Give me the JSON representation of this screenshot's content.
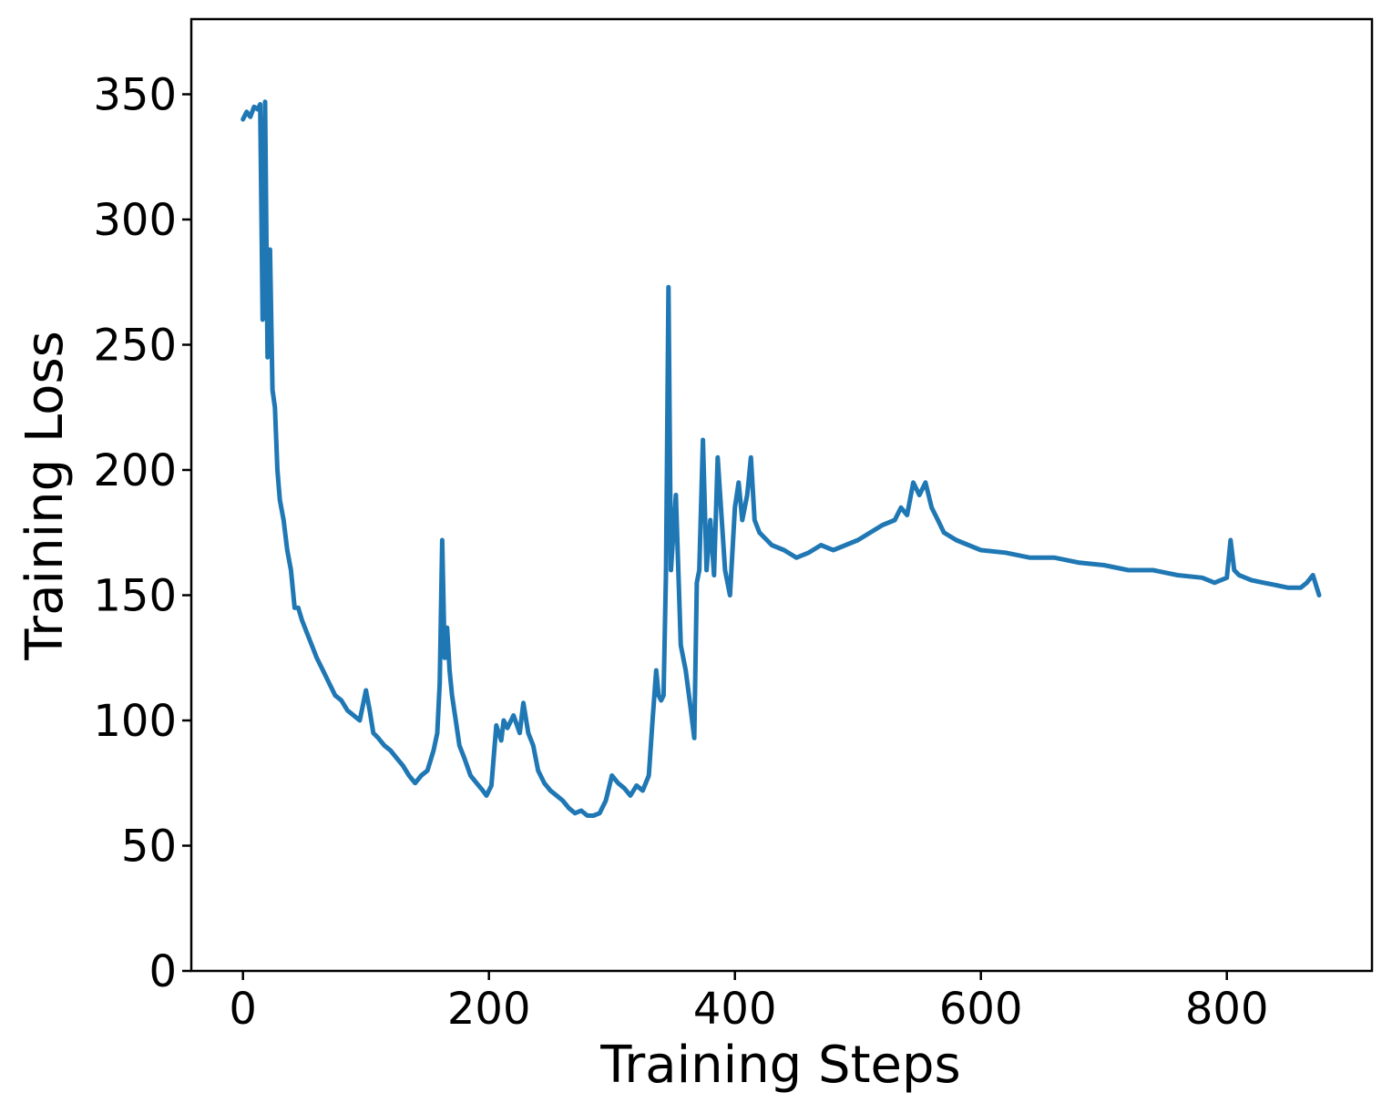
{
  "chart_data": {
    "type": "line",
    "title": "",
    "xlabel": "Training Steps",
    "ylabel": "Training Loss",
    "xlim": [
      -42,
      918
    ],
    "ylim": [
      0,
      380
    ],
    "xticks": [
      0,
      200,
      400,
      600,
      800
    ],
    "xtick_labels": [
      "0",
      "200",
      "400",
      "600",
      "800"
    ],
    "yticks": [
      0,
      50,
      100,
      150,
      200,
      250,
      300,
      350
    ],
    "ytick_labels": [
      "0",
      "50",
      "100",
      "150",
      "200",
      "250",
      "300",
      "350"
    ],
    "grid": false,
    "legend": "none",
    "series": [
      {
        "color": "#1f77b4",
        "x": [
          0,
          3,
          6,
          9,
          12,
          14,
          16,
          18,
          20,
          22,
          24,
          26,
          28,
          30,
          33,
          36,
          39,
          42,
          45,
          48,
          52,
          56,
          60,
          65,
          70,
          75,
          80,
          85,
          90,
          95,
          100,
          103,
          106,
          110,
          115,
          120,
          125,
          130,
          135,
          140,
          145,
          150,
          155,
          158,
          160,
          162,
          164,
          166,
          168,
          170,
          173,
          176,
          180,
          185,
          190,
          195,
          198,
          202,
          206,
          210,
          212,
          215,
          220,
          225,
          228,
          232,
          236,
          240,
          245,
          250,
          255,
          260,
          265,
          270,
          275,
          280,
          285,
          290,
          295,
          300,
          305,
          310,
          315,
          320,
          325,
          330,
          333,
          336,
          338,
          340,
          342,
          344,
          346,
          348,
          352,
          356,
          360,
          364,
          367,
          369,
          371,
          374,
          377,
          380,
          383,
          386,
          388,
          392,
          396,
          400,
          403,
          406,
          410,
          413,
          416,
          420,
          430,
          440,
          450,
          460,
          470,
          480,
          490,
          500,
          510,
          520,
          530,
          535,
          540,
          545,
          550,
          555,
          560,
          565,
          570,
          580,
          590,
          600,
          620,
          640,
          660,
          680,
          700,
          720,
          740,
          760,
          780,
          790,
          800,
          803,
          806,
          810,
          820,
          830,
          840,
          850,
          860,
          865,
          870,
          875
        ],
        "y": [
          340,
          343,
          341,
          345,
          344,
          346,
          260,
          347,
          245,
          288,
          232,
          225,
          200,
          188,
          180,
          168,
          160,
          145,
          145,
          140,
          135,
          130,
          125,
          120,
          115,
          110,
          108,
          104,
          102,
          100,
          112,
          104,
          95,
          93,
          90,
          88,
          85,
          82,
          78,
          75,
          78,
          80,
          88,
          95,
          115,
          172,
          125,
          137,
          120,
          110,
          100,
          90,
          85,
          78,
          75,
          72,
          70,
          74,
          98,
          92,
          100,
          97,
          102,
          95,
          107,
          95,
          90,
          80,
          75,
          72,
          70,
          68,
          65,
          63,
          64,
          62,
          62,
          63,
          68,
          78,
          75,
          73,
          70,
          74,
          72,
          78,
          100,
          120,
          110,
          108,
          110,
          160,
          273,
          160,
          190,
          130,
          120,
          105,
          93,
          155,
          160,
          212,
          160,
          180,
          158,
          205,
          190,
          160,
          150,
          185,
          195,
          180,
          190,
          205,
          180,
          175,
          170,
          168,
          165,
          167,
          170,
          168,
          170,
          172,
          175,
          178,
          180,
          185,
          182,
          195,
          190,
          195,
          185,
          180,
          175,
          172,
          170,
          168,
          167,
          165,
          165,
          163,
          162,
          160,
          160,
          158,
          157,
          155,
          157,
          172,
          160,
          158,
          156,
          155,
          154,
          153,
          153,
          155,
          158,
          150
        ]
      }
    ]
  }
}
